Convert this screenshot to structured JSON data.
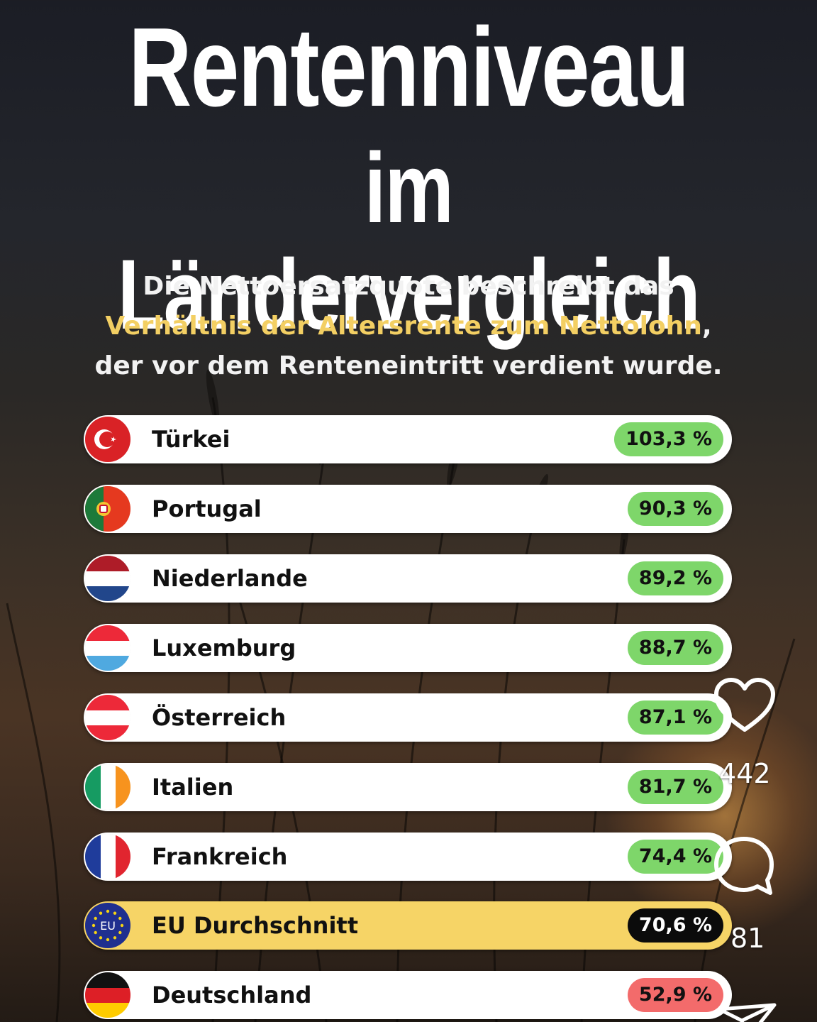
{
  "header": {
    "title_line1": "Rentenniveau",
    "title_line2": "im Ländervergleich"
  },
  "subtitle": {
    "line1": "Die Nettoersatzquote beschreibt das",
    "highlight": "Verhältnis der Altersrente zum Nettolohn",
    "line2_suffix": ",",
    "line3": "der vor dem Renteneintritt verdient wurde."
  },
  "rows": [
    {
      "country": "Türkei",
      "value": "103,3 %",
      "flag": "turkey-flag-icon"
    },
    {
      "country": "Portugal",
      "value": "90,3 %",
      "flag": "portugal-flag-icon"
    },
    {
      "country": "Niederlande",
      "value": "89,2 %",
      "flag": "netherlands-flag-icon"
    },
    {
      "country": "Luxemburg",
      "value": "88,7 %",
      "flag": "luxembourg-flag-icon"
    },
    {
      "country": "Österreich",
      "value": "87,1 %",
      "flag": "austria-flag-icon"
    },
    {
      "country": "Italien",
      "value": "81,7 %",
      "flag": "italy-flag-icon"
    },
    {
      "country": "Frankreich",
      "value": "74,4 %",
      "flag": "france-flag-icon"
    },
    {
      "country": "EU Durchschnitt",
      "value": "70,6 %",
      "flag": "eu-flag-icon",
      "flag_text": "EU"
    },
    {
      "country": "Deutschland",
      "value": "52,9 %",
      "flag": "germany-flag-icon"
    }
  ],
  "colors": {
    "highlight": "#f3cf63",
    "good": "#7ed66a",
    "eu_row": "#f6d466",
    "bad": "#f36b6b"
  },
  "side_actions": {
    "like_count": "442",
    "comment_count": "81"
  }
}
